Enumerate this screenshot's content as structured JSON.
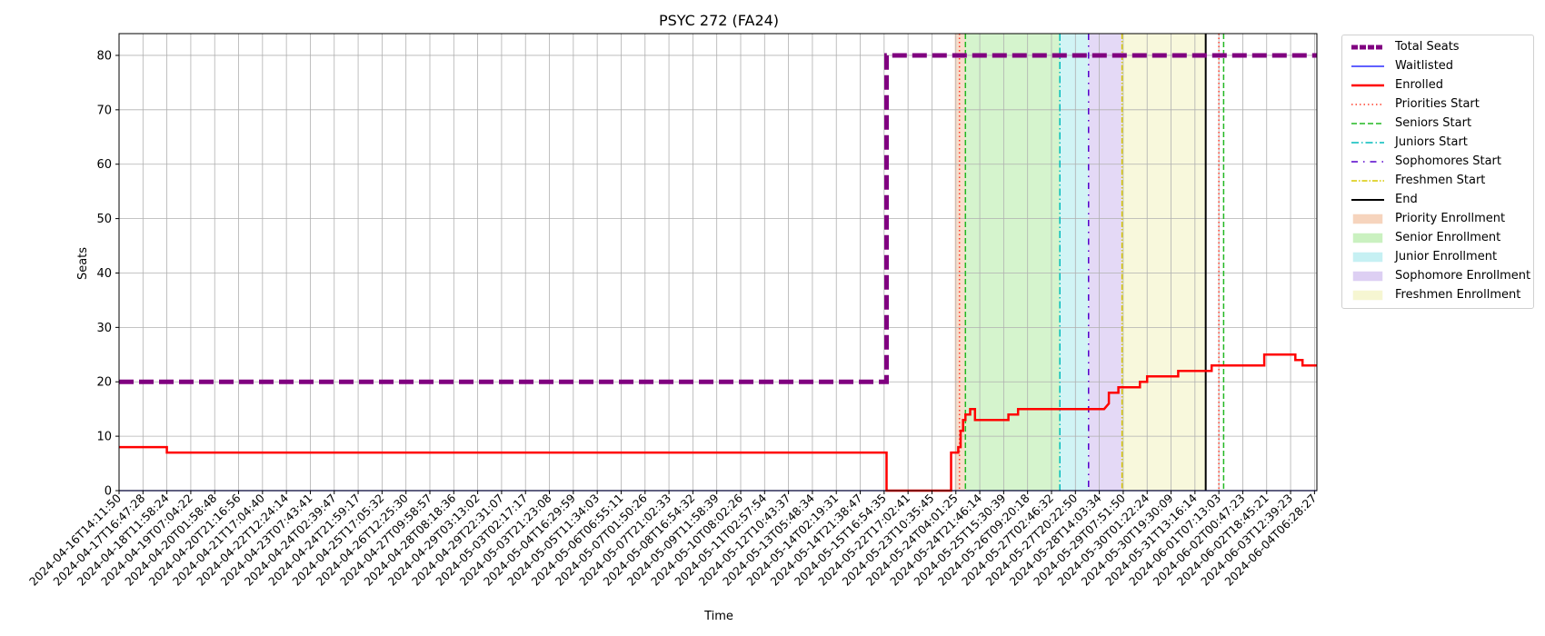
{
  "chart_data": {
    "type": "line",
    "title": "PSYC 272 (FA24)",
    "xlabel": "Time",
    "ylabel": "Seats",
    "ylim": [
      0,
      84
    ],
    "yticks": [
      0,
      10,
      20,
      30,
      40,
      50,
      60,
      70,
      80
    ],
    "grid": true,
    "legend_position": "outside-right",
    "x_tick_labels": [
      "2024-04-16T14:11:50",
      "2024-04-17T16:47:28",
      "2024-04-18T11:58:24",
      "2024-04-19T07:04:22",
      "2024-04-20T01:58:48",
      "2024-04-20T21:16:56",
      "2024-04-21T17:04:40",
      "2024-04-22T12:24:14",
      "2024-04-23T07:43:41",
      "2024-04-24T02:39:47",
      "2024-04-24T21:59:17",
      "2024-04-25T17:05:32",
      "2024-04-26T12:25:30",
      "2024-04-27T09:58:57",
      "2024-04-28T08:18:36",
      "2024-04-29T03:13:02",
      "2024-04-29T22:31:07",
      "2024-05-03T02:17:17",
      "2024-05-03T21:23:08",
      "2024-05-04T16:29:59",
      "2024-05-05T11:34:03",
      "2024-05-06T06:55:11",
      "2024-05-07T01:50:26",
      "2024-05-07T21:02:33",
      "2024-05-08T16:54:32",
      "2024-05-09T11:58:39",
      "2024-05-10T08:02:26",
      "2024-05-11T02:57:54",
      "2024-05-12T10:43:37",
      "2024-05-13T05:48:34",
      "2024-05-14T02:19:31",
      "2024-05-14T21:38:47",
      "2024-05-15T16:54:35",
      "2024-05-22T17:02:41",
      "2024-05-23T10:35:45",
      "2024-05-24T04:01:25",
      "2024-05-24T21:46:14",
      "2024-05-25T15:30:39",
      "2024-05-26T09:20:18",
      "2024-05-27T02:46:32",
      "2024-05-27T20:22:50",
      "2024-05-28T14:03:34",
      "2024-05-29T07:51:50",
      "2024-05-30T01:22:24",
      "2024-05-30T19:30:09",
      "2024-05-31T13:16:14",
      "2024-06-01T07:13:03",
      "2024-06-02T00:47:23",
      "2024-06-02T18:45:21",
      "2024-06-03T12:39:23",
      "2024-06-04T06:28:27"
    ],
    "x_range": [
      0,
      50.1
    ],
    "series": [
      {
        "name": "Total Seats",
        "color": "#800080",
        "style": "dashed-thick",
        "points": [
          [
            0,
            20
          ],
          [
            32.1,
            20
          ],
          [
            32.1,
            80
          ],
          [
            50.1,
            80
          ]
        ]
      },
      {
        "name": "Waitlisted",
        "color": "#0000ff",
        "style": "solid-thin",
        "points": [
          [
            0,
            0
          ],
          [
            50.1,
            0
          ]
        ]
      },
      {
        "name": "Enrolled",
        "color": "#ff0000",
        "style": "solid",
        "points": [
          [
            0,
            8
          ],
          [
            2,
            8
          ],
          [
            2,
            7
          ],
          [
            32.1,
            7
          ],
          [
            32.1,
            0
          ],
          [
            34.8,
            0
          ],
          [
            34.8,
            7
          ],
          [
            35.1,
            7
          ],
          [
            35.1,
            8
          ],
          [
            35.2,
            8
          ],
          [
            35.2,
            11
          ],
          [
            35.3,
            11
          ],
          [
            35.3,
            13
          ],
          [
            35.4,
            13
          ],
          [
            35.4,
            14
          ],
          [
            35.6,
            14
          ],
          [
            35.6,
            15
          ],
          [
            35.8,
            15
          ],
          [
            35.8,
            13
          ],
          [
            37.2,
            13
          ],
          [
            37.2,
            14
          ],
          [
            37.6,
            14
          ],
          [
            37.6,
            15
          ],
          [
            41.2,
            15
          ],
          [
            41.4,
            16
          ],
          [
            41.4,
            18
          ],
          [
            41.8,
            18
          ],
          [
            41.8,
            19
          ],
          [
            42.7,
            19
          ],
          [
            42.7,
            20
          ],
          [
            43.0,
            20
          ],
          [
            43.0,
            21
          ],
          [
            44.3,
            21
          ],
          [
            44.3,
            22
          ],
          [
            45.7,
            22
          ],
          [
            45.7,
            23
          ],
          [
            47.9,
            23
          ],
          [
            47.9,
            25
          ],
          [
            49.2,
            25
          ],
          [
            49.2,
            24
          ],
          [
            49.5,
            24
          ],
          [
            49.5,
            23
          ],
          [
            50.1,
            23
          ]
        ]
      }
    ],
    "vertical_lines": [
      {
        "name": "Priorities Start",
        "x": 35.15,
        "color": "#ff3c28",
        "dash": "1.5,3"
      },
      {
        "name": "Seniors Start",
        "x": 35.4,
        "color": "#22b822",
        "dash": "6,3"
      },
      {
        "name": "Juniors Start",
        "x": 39.35,
        "color": "#00bcbc",
        "dash": "8,3,1.5,3"
      },
      {
        "name": "Sophomores Start",
        "x": 40.55,
        "color": "#5500cc",
        "dash": "7,6,1.5,6"
      },
      {
        "name": "Freshmen Start",
        "x": 41.95,
        "color": "#d8c800",
        "dash": "6,2,1.5,2"
      },
      {
        "name": "End",
        "x": 45.45,
        "color": "#000000",
        "dash": ""
      },
      {
        "name": "Priorities Start 2",
        "x": 46.0,
        "color": "#ff3c28",
        "dash": "1.5,3"
      },
      {
        "name": "Seniors Start 2",
        "x": 46.2,
        "color": "#22b822",
        "dash": "6,3"
      }
    ],
    "shaded_regions": [
      {
        "name": "Priority Enrollment",
        "x_start": 34.95,
        "x_end": 35.4,
        "color": "#f4c6a8"
      },
      {
        "name": "Senior Enrollment",
        "x_start": 35.4,
        "x_end": 39.35,
        "color": "#b9edab"
      },
      {
        "name": "Junior Enrollment",
        "x_start": 39.35,
        "x_end": 40.55,
        "color": "#b3ecef"
      },
      {
        "name": "Sophomore Enrollment",
        "x_start": 40.55,
        "x_end": 41.95,
        "color": "#d2bff0"
      },
      {
        "name": "Freshmen Enrollment",
        "x_start": 41.95,
        "x_end": 45.45,
        "color": "#f3f3c4"
      }
    ],
    "legend": [
      {
        "label": "Total Seats",
        "kind": "line",
        "color": "#800080",
        "width": 5,
        "dash": "7,2"
      },
      {
        "label": "Waitlisted",
        "kind": "line",
        "color": "#0000ff",
        "width": 1.3,
        "dash": ""
      },
      {
        "label": "Enrolled",
        "kind": "line",
        "color": "#ff0000",
        "width": 2.5,
        "dash": ""
      },
      {
        "label": "Priorities Start",
        "kind": "line",
        "color": "#ff3c28",
        "width": 1.5,
        "dash": "1.5,3"
      },
      {
        "label": "Seniors Start",
        "kind": "line",
        "color": "#22b822",
        "width": 1.5,
        "dash": "6,3"
      },
      {
        "label": "Juniors Start",
        "kind": "line",
        "color": "#00bcbc",
        "width": 1.5,
        "dash": "8,3,1.5,3"
      },
      {
        "label": "Sophomores Start",
        "kind": "line",
        "color": "#5500cc",
        "width": 1.5,
        "dash": "7,6,1.5,6"
      },
      {
        "label": "Freshmen Start",
        "kind": "line",
        "color": "#d8c800",
        "width": 1.5,
        "dash": "6,2,1.5,2"
      },
      {
        "label": "End",
        "kind": "line",
        "color": "#000000",
        "width": 2,
        "dash": ""
      },
      {
        "label": "Priority Enrollment",
        "kind": "patch",
        "color": "#f4c6a8"
      },
      {
        "label": "Senior Enrollment",
        "kind": "patch",
        "color": "#b9edab"
      },
      {
        "label": "Junior Enrollment",
        "kind": "patch",
        "color": "#b3ecef"
      },
      {
        "label": "Sophomore Enrollment",
        "kind": "patch",
        "color": "#d2bff0"
      },
      {
        "label": "Freshmen Enrollment",
        "kind": "patch",
        "color": "#f3f3c4"
      }
    ]
  }
}
